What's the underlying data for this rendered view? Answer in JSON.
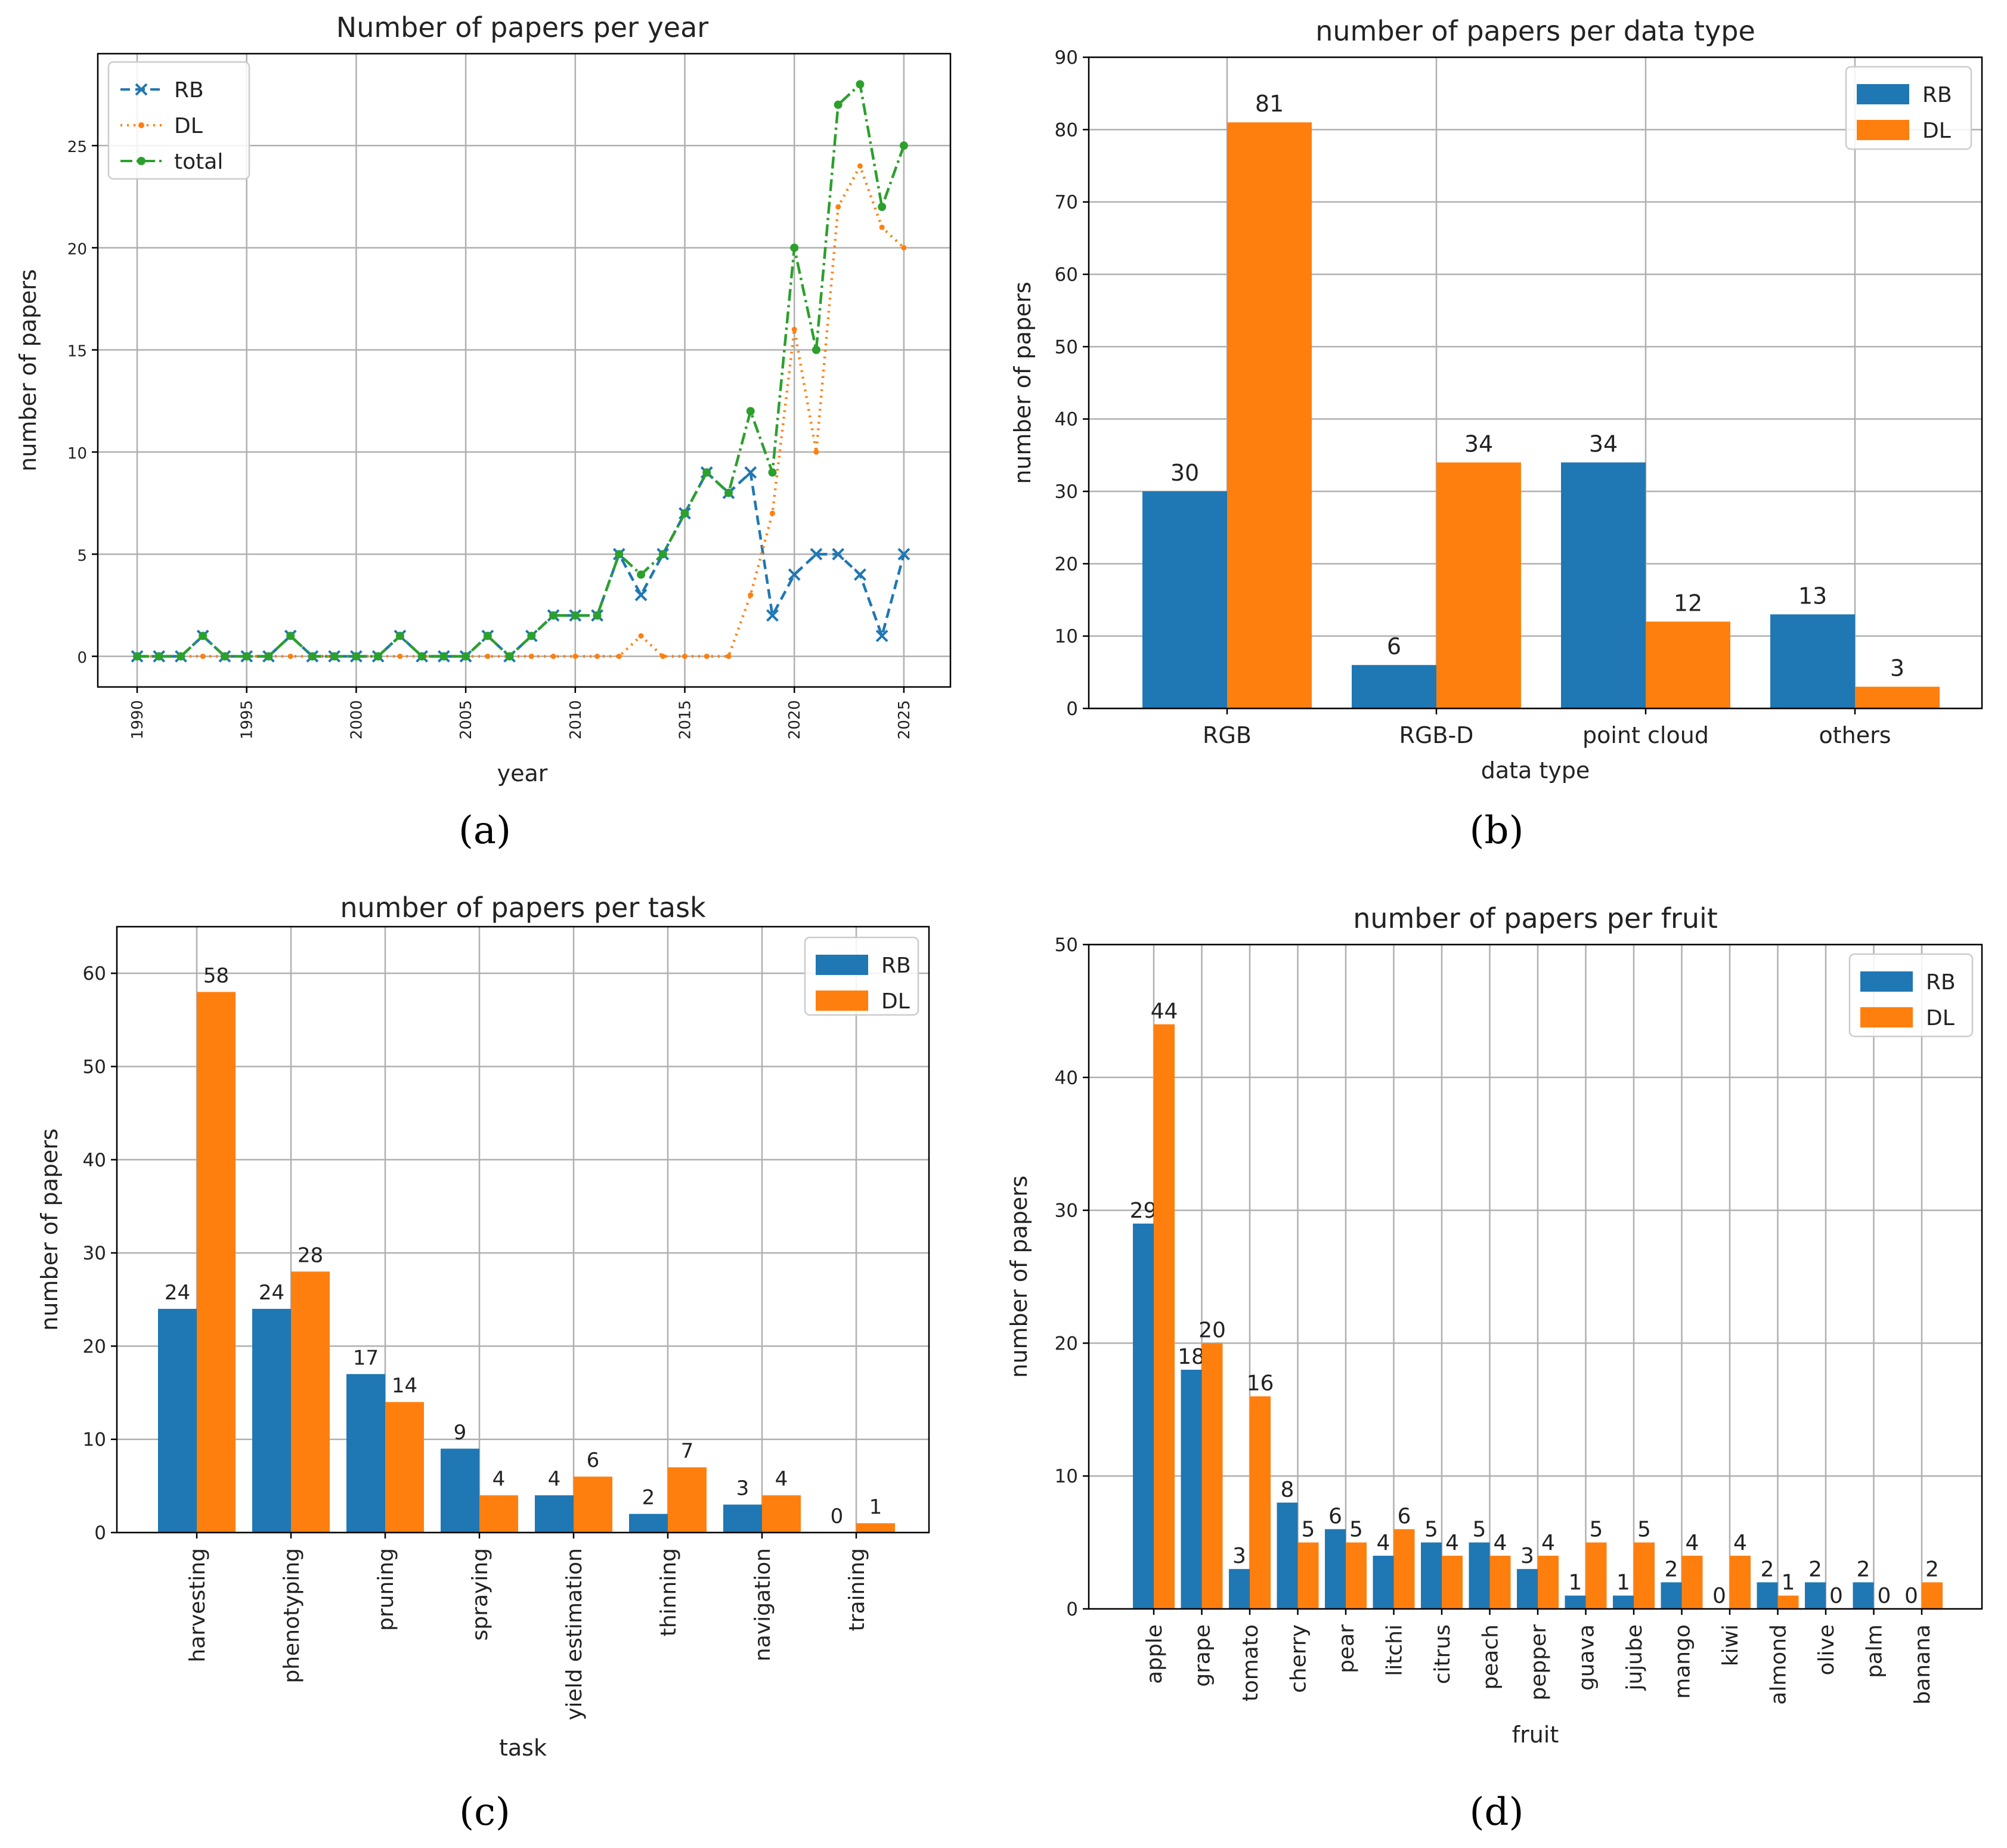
{
  "colors": {
    "rb": "#1f77b4",
    "dl": "#ff7f0e",
    "total": "#2ca02c"
  },
  "captions": [
    "(a)",
    "(b)",
    "(c)",
    "(d)"
  ],
  "chart_data": [
    {
      "type": "line",
      "title": "Number of papers per year",
      "xlabel": "year",
      "ylabel": "number of papers",
      "xlim": [
        1990,
        2025
      ],
      "ylim": [
        -1.5,
        29.5
      ],
      "xticks": [
        "1990",
        "1995",
        "2000",
        "2005",
        "2010",
        "2015",
        "2020",
        "2025"
      ],
      "yticks": [
        "0",
        "5",
        "10",
        "15",
        "20",
        "25"
      ],
      "grid": true,
      "legend": "top-left",
      "x": [
        1990,
        1991,
        1992,
        1993,
        1994,
        1995,
        1996,
        1997,
        1998,
        1999,
        2000,
        2001,
        2002,
        2003,
        2004,
        2005,
        2006,
        2007,
        2008,
        2009,
        2010,
        2011,
        2012,
        2013,
        2014,
        2015,
        2016,
        2017,
        2018,
        2019,
        2020,
        2021,
        2022,
        2023,
        2024,
        2025
      ],
      "series": [
        {
          "name": "RB",
          "values": [
            0,
            0,
            0,
            1,
            0,
            0,
            0,
            1,
            0,
            0,
            0,
            0,
            1,
            0,
            0,
            0,
            1,
            0,
            1,
            2,
            2,
            2,
            5,
            3,
            5,
            7,
            9,
            8,
            9,
            2,
            4,
            5,
            5,
            4,
            1,
            5
          ]
        },
        {
          "name": "DL",
          "values": [
            0,
            0,
            0,
            0,
            0,
            0,
            0,
            0,
            0,
            0,
            0,
            0,
            0,
            0,
            0,
            0,
            0,
            0,
            0,
            0,
            0,
            0,
            0,
            1,
            0,
            0,
            0,
            0,
            3,
            7,
            16,
            10,
            22,
            24,
            21,
            20
          ]
        },
        {
          "name": "total",
          "values": [
            0,
            0,
            0,
            1,
            0,
            0,
            0,
            1,
            0,
            0,
            0,
            0,
            1,
            0,
            0,
            0,
            1,
            0,
            1,
            2,
            2,
            2,
            5,
            4,
            5,
            7,
            9,
            8,
            12,
            9,
            20,
            15,
            27,
            28,
            22,
            25
          ]
        }
      ]
    },
    {
      "type": "bar",
      "title": "number of papers per data type",
      "xlabel": "data type",
      "ylabel": "number of papers",
      "ylim": [
        0,
        90
      ],
      "yticks": [
        "0",
        "10",
        "20",
        "30",
        "40",
        "50",
        "60",
        "70",
        "80",
        "90"
      ],
      "grid": true,
      "legend": "top-right",
      "categories": [
        "RGB",
        "RGB-D",
        "point cloud",
        "others"
      ],
      "series": [
        {
          "name": "RB",
          "values": [
            30,
            6,
            34,
            13
          ]
        },
        {
          "name": "DL",
          "values": [
            81,
            34,
            12,
            3
          ]
        }
      ]
    },
    {
      "type": "bar",
      "title": "number of papers per task",
      "xlabel": "task",
      "ylabel": "number of papers",
      "ylim": [
        0,
        65
      ],
      "yticks": [
        "0",
        "10",
        "20",
        "30",
        "40",
        "50",
        "60"
      ],
      "grid": true,
      "legend": "top-right",
      "categories": [
        "harvesting",
        "phenotyping",
        "pruning",
        "spraying",
        "yield estimation",
        "thinning",
        "navigation",
        "training"
      ],
      "series": [
        {
          "name": "RB",
          "values": [
            24,
            24,
            17,
            9,
            4,
            2,
            3,
            0
          ]
        },
        {
          "name": "DL",
          "values": [
            58,
            28,
            14,
            4,
            6,
            7,
            4,
            1
          ]
        }
      ]
    },
    {
      "type": "bar",
      "title": "number of papers per fruit",
      "xlabel": "fruit",
      "ylabel": "number of papers",
      "ylim": [
        0,
        50
      ],
      "yticks": [
        "0",
        "10",
        "20",
        "30",
        "40",
        "50"
      ],
      "grid": true,
      "legend": "top-right",
      "categories": [
        "apple",
        "grape",
        "tomato",
        "cherry",
        "pear",
        "litchi",
        "citrus",
        "peach",
        "pepper",
        "guava",
        "jujube",
        "mango",
        "kiwi",
        "almond",
        "olive",
        "palm",
        "banana"
      ],
      "series": [
        {
          "name": "RB",
          "values": [
            29,
            18,
            3,
            8,
            6,
            4,
            5,
            5,
            3,
            1,
            1,
            2,
            0,
            2,
            2,
            2,
            0
          ]
        },
        {
          "name": "DL",
          "values": [
            44,
            20,
            16,
            5,
            5,
            6,
            4,
            4,
            4,
            5,
            5,
            4,
            4,
            1,
            0,
            0,
            2
          ]
        }
      ]
    }
  ]
}
